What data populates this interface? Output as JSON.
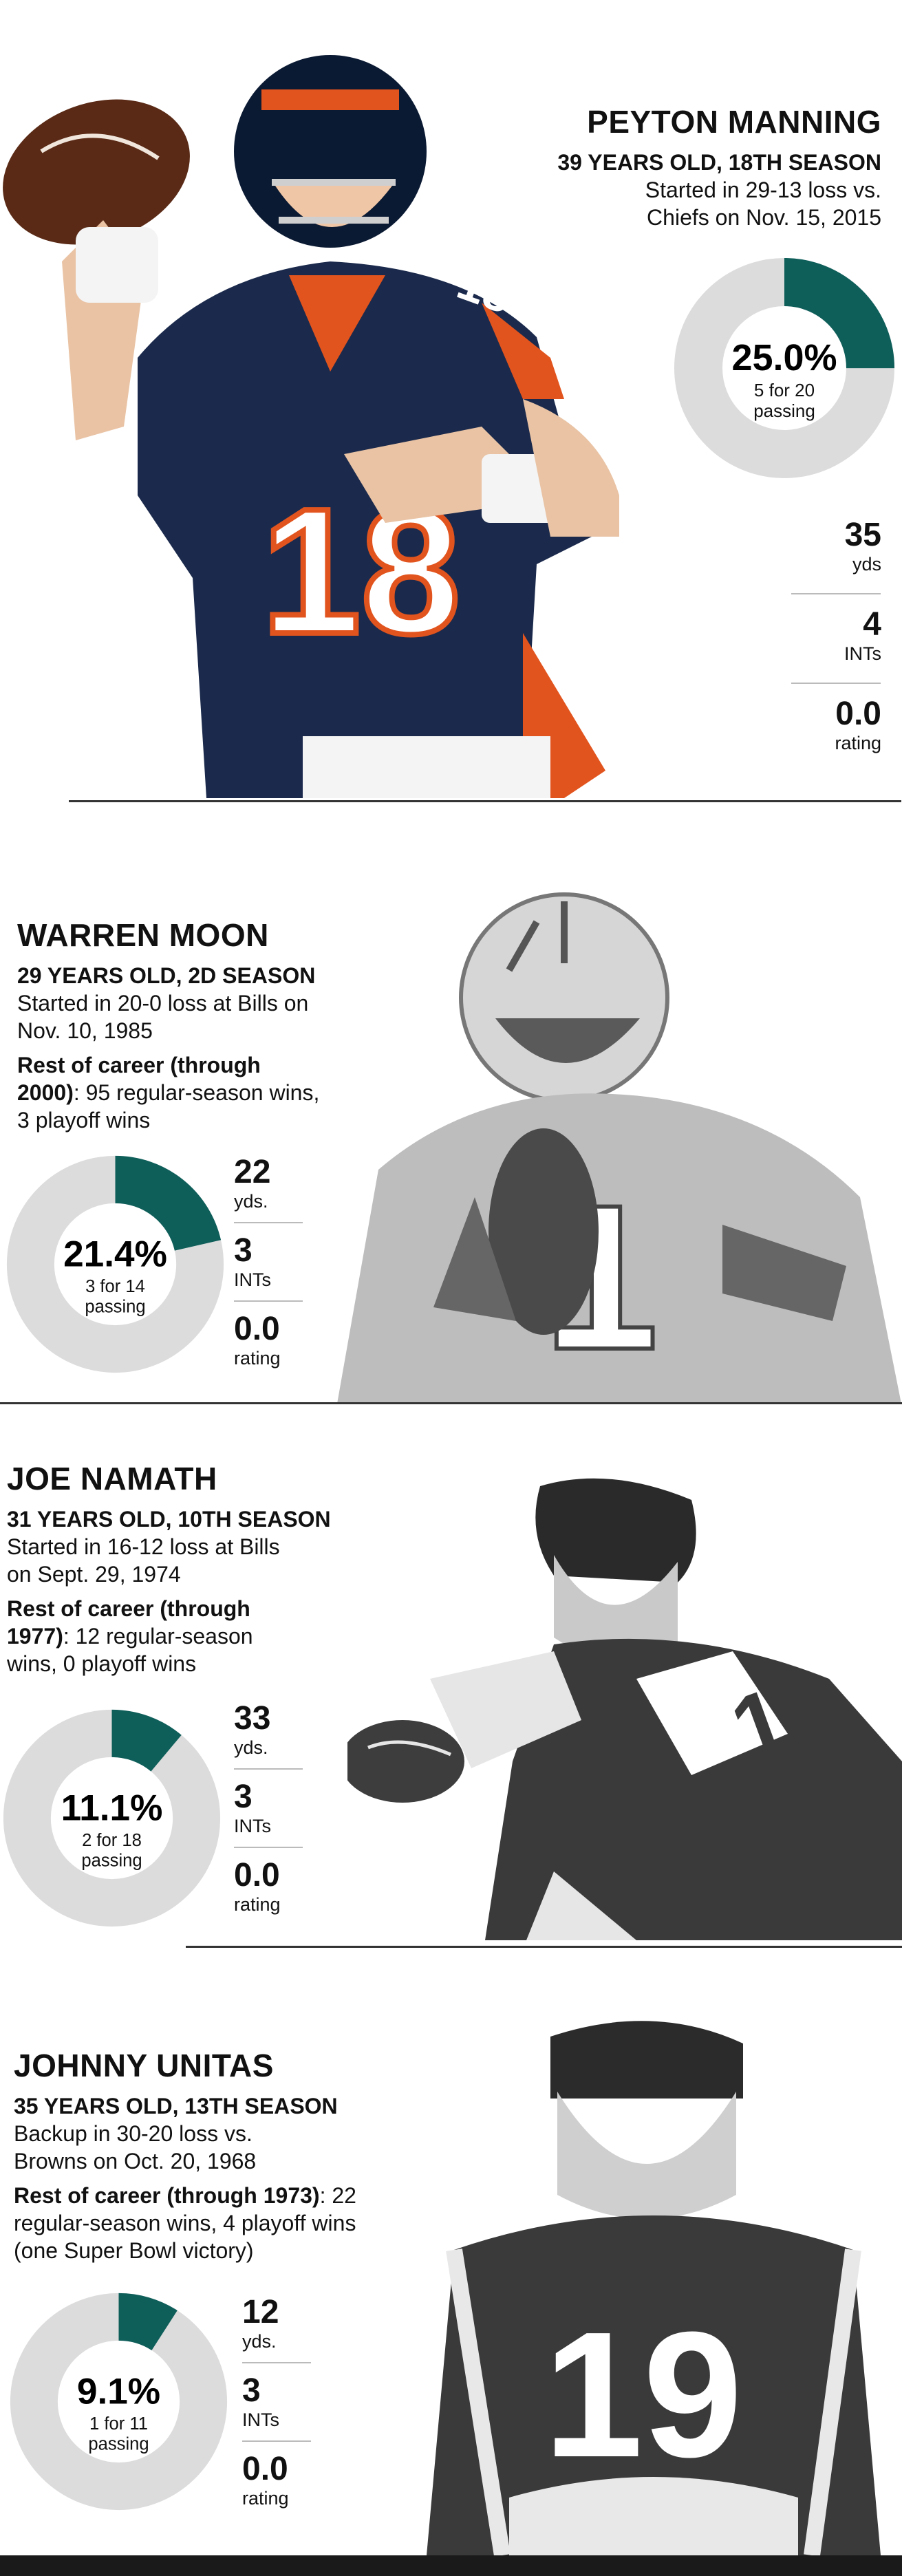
{
  "colors": {
    "accent": "#0e5e5a",
    "ring": "#dcdcdc",
    "rule": "#333333"
  },
  "players": [
    {
      "name": "PEYTON MANNING",
      "subtitle": "39 YEARS OLD, 18TH SEASON",
      "note": "Started in 29-13 loss vs. Chiefs on Nov. 15, 2015",
      "rest_label": "",
      "rest_text": "",
      "pct_label": "25.0%",
      "passing": "5 for 20 passing",
      "stats": [
        {
          "value": "35",
          "label": "yds"
        },
        {
          "value": "4",
          "label": "INTs"
        },
        {
          "value": "0.0",
          "label": "rating"
        }
      ],
      "photo": "quarterback-throwing-photo"
    },
    {
      "name": "WARREN MOON",
      "subtitle": "29 YEARS OLD, 2D SEASON",
      "note": "Started in 20-0 loss at Bills on Nov. 10, 1985",
      "rest_label": "Rest of career (through 2000)",
      "rest_text": ": 95 regular-season wins, 3 playoff wins",
      "pct_label": "21.4%",
      "passing": "3 for 14 passing",
      "stats": [
        {
          "value": "22",
          "label": "yds."
        },
        {
          "value": "3",
          "label": "INTs"
        },
        {
          "value": "0.0",
          "label": "rating"
        }
      ],
      "photo": "quarterback-holding-ball-photo"
    },
    {
      "name": "JOE NAMATH",
      "subtitle": "31 YEARS OLD, 10TH SEASON",
      "note": "Started in 16-12 loss at Bills on Sept. 29, 1974",
      "rest_label": "Rest of career (through 1977)",
      "rest_text": ": 12 regular-season wins, 0 playoff wins",
      "pct_label": "11.1%",
      "passing": "2 for 18 passing",
      "stats": [
        {
          "value": "33",
          "label": "yds."
        },
        {
          "value": "3",
          "label": "INTs"
        },
        {
          "value": "0.0",
          "label": "rating"
        }
      ],
      "photo": "quarterback-passing-photo"
    },
    {
      "name": "JOHNNY UNITAS",
      "subtitle": "35 YEARS OLD, 13TH SEASON",
      "note": "Backup in 30-20 loss vs. Browns on Oct. 20, 1968",
      "rest_label": "Rest of career (through 1973)",
      "rest_text": ": 22 regular-season wins, 4 playoff wins (one Super Bowl victory)",
      "pct_label": "9.1%",
      "passing": "1 for 11 passing",
      "stats": [
        {
          "value": "12",
          "label": "yds."
        },
        {
          "value": "3",
          "label": "INTs"
        },
        {
          "value": "0.0",
          "label": "rating"
        }
      ],
      "photo": "quarterback-portrait-photo"
    }
  ],
  "chart_data": [
    {
      "type": "pie",
      "title": "PEYTON MANNING",
      "values": [
        25.0,
        75.0
      ],
      "label": "25.0%"
    },
    {
      "type": "pie",
      "title": "WARREN MOON",
      "values": [
        21.4,
        78.6
      ],
      "label": "21.4%"
    },
    {
      "type": "pie",
      "title": "JOE NAMATH",
      "values": [
        11.1,
        88.9
      ],
      "label": "11.1%"
    },
    {
      "type": "pie",
      "title": "JOHNNY UNITAS",
      "values": [
        9.1,
        90.9
      ],
      "label": "9.1%"
    }
  ]
}
